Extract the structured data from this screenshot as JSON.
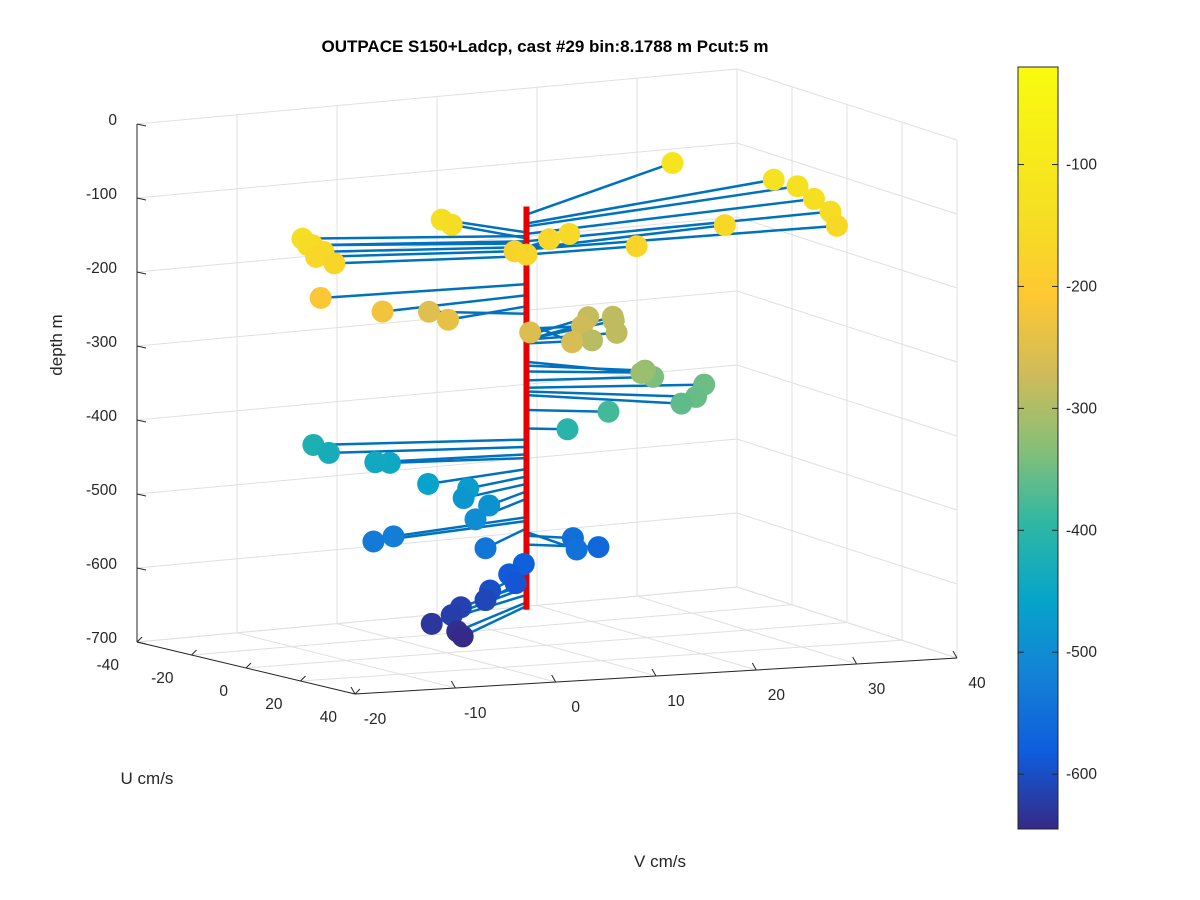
{
  "chart_data": {
    "type": "scatter",
    "title": "OUTPACE S150+Ladcp, cast #29 bin:8.1788 m  Pcut:5 m",
    "xlabel": "V cm/s",
    "ylabel": "U cm/s",
    "zlabel": "depth m",
    "xlim": [
      -20,
      40
    ],
    "ylim": [
      -40,
      40
    ],
    "zlim": [
      -700,
      0
    ],
    "xticks": [
      "-20",
      "-10",
      "0",
      "10",
      "20",
      "30",
      "40"
    ],
    "yticks": [
      "-40",
      "-20",
      "0",
      "20",
      "40"
    ],
    "zticks": [
      "0",
      "-100",
      "-200",
      "-300",
      "-400",
      "-500",
      "-600",
      "-700"
    ],
    "grid": true,
    "colorbar": {
      "colormap": "parula",
      "limits": [
        -645,
        -20
      ],
      "ticks": [
        "-100",
        "-200",
        "-300",
        "-400",
        "-500",
        "-600"
      ]
    },
    "reference_line": {
      "v": 8,
      "u": 0,
      "z_top": -105,
      "z_bottom": -650,
      "color": "#e60000"
    },
    "stem_color": "#0072bd",
    "series": [
      {
        "points": [
          {
            "v": 33,
            "u": -38,
            "z": -116
          },
          {
            "v": 39,
            "u": -23,
            "z": -128
          },
          {
            "v": 40,
            "u": -18,
            "z": -132
          },
          {
            "v": 40,
            "u": -12,
            "z": -142
          },
          {
            "v": 40,
            "u": -6,
            "z": -152
          },
          {
            "v": 39,
            "u": 0,
            "z": -163
          },
          {
            "v": 30,
            "u": -8,
            "z": -162
          },
          {
            "v": 15,
            "u": -10,
            "z": -160
          },
          {
            "v": 19,
            "u": 0,
            "z": -170
          },
          {
            "v": 13,
            "u": -10,
            "z": -165
          },
          {
            "v": 9,
            "u": -8,
            "z": -175
          },
          {
            "v": 8,
            "u": 0,
            "z": -170
          },
          {
            "v": 5,
            "u": -20,
            "z": -140
          },
          {
            "v": 6,
            "u": -20,
            "z": -148
          },
          {
            "v": -9,
            "u": -16,
            "z": -155
          },
          {
            "v": -9,
            "u": -12,
            "z": -160
          },
          {
            "v": -10,
            "u": -16,
            "z": -145
          },
          {
            "v": -10,
            "u": -14,
            "z": -152
          },
          {
            "v": -10,
            "u": -11,
            "z": -165
          },
          {
            "v": -9,
            "u": -8,
            "z": -172
          },
          {
            "v": -12,
            "u": -2,
            "z": -210
          },
          {
            "v": -8,
            "u": 6,
            "z": -225
          },
          {
            "v": -2,
            "u": 8,
            "z": -240
          },
          {
            "v": 1,
            "u": -10,
            "z": -250
          },
          {
            "v": 4,
            "u": 16,
            "z": -255
          },
          {
            "v": 6,
            "u": 24,
            "z": -262
          },
          {
            "v": 13,
            "u": 2,
            "z": -270
          },
          {
            "v": 18,
            "u": -14,
            "z": -280
          },
          {
            "v": 21,
            "u": -16,
            "z": -285
          },
          {
            "v": 20,
            "u": -12,
            "z": -285
          },
          {
            "v": 17,
            "u": 0,
            "z": -285
          },
          {
            "v": 14,
            "u": 2,
            "z": -290
          },
          {
            "v": 14,
            "u": 20,
            "z": -315
          },
          {
            "v": 16,
            "u": 14,
            "z": -320
          },
          {
            "v": 17,
            "u": 10,
            "z": -328
          },
          {
            "v": 19,
            "u": 6,
            "z": -340
          },
          {
            "v": 23,
            "u": 10,
            "z": -350
          },
          {
            "v": 20,
            "u": 18,
            "z": -355
          },
          {
            "v": 18,
            "u": 20,
            "z": -360
          },
          {
            "v": 14,
            "u": 8,
            "z": -380
          },
          {
            "v": 11,
            "u": 4,
            "z": -405
          },
          {
            "v": -10,
            "u": -12,
            "z": -420
          },
          {
            "v": -9,
            "u": -10,
            "z": -430
          },
          {
            "v": -6,
            "u": -4,
            "z": -440
          },
          {
            "v": -4,
            "u": -6,
            "z": -445
          },
          {
            "v": -4,
            "u": 8,
            "z": -460
          },
          {
            "v": 0,
            "u": 8,
            "z": -470
          },
          {
            "v": -1,
            "u": 10,
            "z": -480
          },
          {
            "v": 1,
            "u": 12,
            "z": -490
          },
          {
            "v": -2,
            "u": 18,
            "z": -500
          },
          {
            "v": -8,
            "u": 10,
            "z": -525
          },
          {
            "v": -10,
            "u": 10,
            "z": -530
          },
          {
            "v": -1,
            "u": 18,
            "z": -540
          },
          {
            "v": 7,
            "u": 22,
            "z": -545
          },
          {
            "v": 11,
            "u": 6,
            "z": -550
          },
          {
            "v": 13,
            "u": 8,
            "z": -562
          },
          {
            "v": 5,
            "u": 10,
            "z": -575
          },
          {
            "v": 3,
            "u": 12,
            "z": -585
          },
          {
            "v": 2,
            "u": 18,
            "z": -590
          },
          {
            "v": 0,
            "u": 16,
            "z": -600
          },
          {
            "v": -1,
            "u": 18,
            "z": -610
          },
          {
            "v": -4,
            "u": 20,
            "z": -615
          },
          {
            "v": -6,
            "u": 24,
            "z": -620
          },
          {
            "v": -8,
            "u": 24,
            "z": -630
          },
          {
            "v": -6,
            "u": 26,
            "z": -640
          },
          {
            "v": -6,
            "u": 28,
            "z": -645
          }
        ]
      }
    ]
  }
}
